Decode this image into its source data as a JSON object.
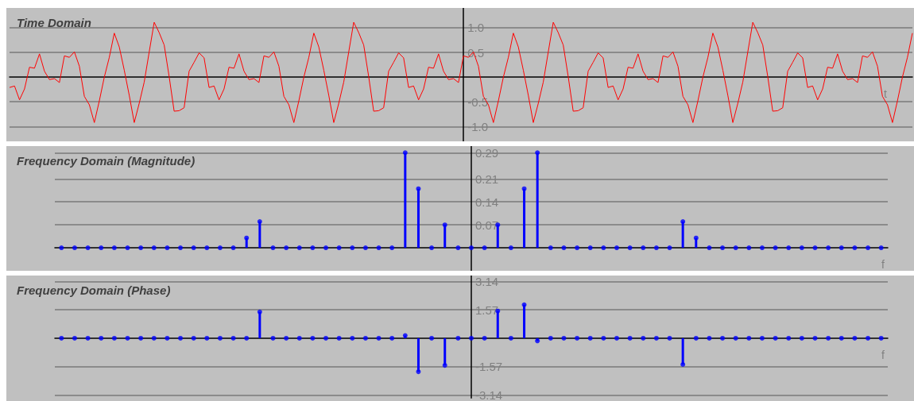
{
  "chart_data": [
    {
      "type": "line",
      "title": "Time Domain",
      "xlabel": "t",
      "color": "#ff0000",
      "marker": "none",
      "grid": "y",
      "tick_labels": "y",
      "ylim": [
        -1.3,
        1.4
      ],
      "yticks": [
        {
          "value": -1,
          "label": "-1.0"
        },
        {
          "value": -0.5,
          "label": "-0.5"
        },
        {
          "value": 0.5,
          "label": "0.5"
        },
        {
          "value": 1,
          "label": "1.0"
        }
      ],
      "categories": [
        null,
        null,
        null,
        null,
        null,
        null,
        null,
        null,
        null,
        null,
        null,
        null,
        null,
        null,
        null,
        null,
        null,
        null,
        null,
        null,
        null,
        null,
        null,
        null,
        null,
        null,
        null,
        null,
        null,
        null,
        null,
        null,
        null,
        null,
        null,
        null,
        null,
        null,
        null,
        null,
        null,
        null,
        null,
        null,
        null,
        null,
        null,
        null,
        null,
        null,
        null,
        null,
        null,
        null,
        null,
        null,
        null,
        null,
        null,
        null,
        null,
        null,
        null,
        null,
        null,
        null,
        null,
        null,
        null,
        null,
        null,
        null,
        null,
        null,
        null,
        null,
        null,
        null,
        null,
        null,
        null,
        null,
        null,
        null,
        null,
        null,
        null,
        null,
        null,
        null,
        null,
        null,
        null,
        null,
        null,
        null,
        null,
        null,
        null,
        null,
        null,
        null,
        null,
        null,
        null,
        null,
        null,
        null,
        null,
        null,
        null,
        null,
        null,
        null,
        null,
        null,
        null,
        null,
        null,
        null,
        null,
        null,
        null,
        null,
        null,
        null,
        null,
        null,
        null,
        null,
        null,
        null,
        null,
        null,
        null,
        null,
        null,
        null,
        null,
        null,
        null,
        null,
        null,
        null,
        null,
        null,
        null,
        null,
        null,
        null,
        null,
        null,
        null,
        null,
        null,
        null,
        null,
        null,
        null,
        null,
        null,
        null,
        null,
        null,
        null,
        null,
        null,
        null,
        null,
        null,
        null,
        null,
        null,
        null,
        null,
        null,
        null,
        null,
        null,
        null,
        null,
        null
      ],
      "values": [
        -0.21,
        -0.18,
        -0.46,
        -0.24,
        0.2,
        0.18,
        0.47,
        0.12,
        -0.05,
        -0.03,
        -0.11,
        0.43,
        0.4,
        0.51,
        0.22,
        -0.39,
        -0.56,
        -0.92,
        -0.48,
        0,
        0.4,
        0.89,
        0.61,
        0.14,
        -0.37,
        -0.92,
        -0.53,
        -0.1,
        0.51,
        1.11,
        0.9,
        0.65,
        0.01,
        -0.69,
        -0.68,
        -0.62,
        0.12,
        0.3,
        0.49,
        0.39,
        -0.21,
        -0.18,
        -0.46,
        -0.24,
        0.2,
        0.18,
        0.47,
        0.12,
        -0.05,
        -0.03,
        -0.11,
        0.43,
        0.4,
        0.51,
        0.22,
        -0.39,
        -0.56,
        -0.92,
        -0.48,
        0,
        0.4,
        0.89,
        0.61,
        0.14,
        -0.37,
        -0.92,
        -0.53,
        -0.1,
        0.51,
        1.11,
        0.9,
        0.65,
        0.01,
        -0.69,
        -0.68,
        -0.62,
        0.12,
        0.3,
        0.49,
        0.39,
        -0.21,
        -0.18,
        -0.46,
        -0.24,
        0.2,
        0.18,
        0.47,
        0.12,
        -0.05,
        -0.03,
        -0.11,
        0.43,
        0.4,
        0.51,
        0.22,
        -0.39,
        -0.56,
        -0.92,
        -0.48,
        0,
        0.4,
        0.89,
        0.61,
        0.14,
        -0.37,
        -0.92,
        -0.53,
        -0.1,
        0.51,
        1.11,
        0.9,
        0.65,
        0.01,
        -0.69,
        -0.68,
        -0.62,
        0.12,
        0.3,
        0.49,
        0.39,
        -0.21,
        -0.18,
        -0.46,
        -0.24,
        0.2,
        0.18,
        0.47,
        0.12,
        -0.05,
        -0.03,
        -0.11,
        0.43,
        0.4,
        0.51,
        0.22,
        -0.39,
        -0.56,
        -0.92,
        -0.48,
        0,
        0.4,
        0.89,
        0.61,
        0.14,
        -0.37,
        -0.92,
        -0.53,
        -0.1,
        0.51,
        1.11,
        0.9,
        0.65,
        0.01,
        -0.69,
        -0.68,
        -0.62,
        0.12,
        0.3,
        0.49,
        0.39,
        -0.21,
        -0.18,
        -0.46,
        -0.24,
        0.2,
        0.18,
        0.47,
        0.12,
        -0.05,
        -0.03,
        -0.11,
        0.43,
        0.4,
        0.51,
        0.22,
        -0.39,
        -0.56,
        -0.92,
        -0.48,
        0,
        0.4,
        0.89
      ]
    },
    {
      "type": "lollipop",
      "title": "Frequency Domain (Magnitude)",
      "xlabel": "f",
      "color": "#0000ff",
      "marker": "circle",
      "grid": "y",
      "tick_labels": "y",
      "ylim": [
        -0.07,
        0.31
      ],
      "yticks": [
        0.07,
        0.14,
        0.21,
        0.29
      ],
      "categories": [
        null,
        null,
        null,
        null,
        null,
        null,
        null,
        null,
        null,
        null,
        null,
        null,
        null,
        null,
        null,
        null,
        null,
        null,
        null,
        null,
        null,
        null,
        null,
        null,
        null,
        null,
        null,
        null,
        null,
        null,
        null,
        null,
        null,
        null,
        null,
        null,
        null,
        null,
        null,
        null,
        null,
        null,
        null,
        null,
        null,
        null,
        null,
        null,
        null,
        null,
        null,
        null,
        null,
        null,
        null,
        null,
        null,
        null,
        null,
        null,
        null,
        null,
        null
      ],
      "values": [
        0,
        0,
        0,
        0,
        0,
        0,
        0,
        0,
        0,
        0,
        0,
        0,
        0,
        0,
        0.03,
        0.08,
        0,
        0,
        0,
        0,
        0,
        0,
        0,
        0,
        0,
        0,
        0.29,
        0.18,
        0,
        0.07,
        0,
        0,
        0,
        0.07,
        0,
        0.18,
        0.29,
        0,
        0,
        0,
        0,
        0,
        0,
        0,
        0,
        0,
        0,
        0.08,
        0.03,
        0,
        0,
        0,
        0,
        0,
        0,
        0,
        0,
        0,
        0,
        0,
        0,
        0,
        0
      ]
    },
    {
      "type": "lollipop",
      "title": "Frequency Domain (Phase)",
      "xlabel": "f",
      "color": "#0000ff",
      "marker": "circle",
      "grid": "y",
      "tick_labels": "y",
      "ylim": [
        -3.3,
        3.45
      ],
      "yticks": [
        -3.14,
        -1.57,
        1.57,
        3.14
      ],
      "categories": [
        null,
        null,
        null,
        null,
        null,
        null,
        null,
        null,
        null,
        null,
        null,
        null,
        null,
        null,
        null,
        null,
        null,
        null,
        null,
        null,
        null,
        null,
        null,
        null,
        null,
        null,
        null,
        null,
        null,
        null,
        null,
        null,
        null,
        null,
        null,
        null,
        null,
        null,
        null,
        null,
        null,
        null,
        null,
        null,
        null,
        null,
        null,
        null,
        null,
        null,
        null,
        null,
        null,
        null,
        null,
        null,
        null,
        null,
        null,
        null,
        null,
        null,
        null
      ],
      "values": [
        0,
        0,
        0,
        0,
        0,
        0,
        0,
        0,
        0,
        0,
        0,
        0,
        0,
        0,
        0,
        1.45,
        0,
        0,
        0,
        0,
        0,
        0,
        0,
        0,
        0,
        0,
        0.15,
        -1.85,
        0,
        -1.5,
        0,
        0,
        0,
        1.5,
        0,
        1.85,
        -0.15,
        0,
        0,
        0,
        0,
        0,
        0,
        0,
        0,
        0,
        0,
        -1.45,
        0,
        0,
        0,
        0,
        0,
        0,
        0,
        0,
        0,
        0,
        0,
        0,
        0,
        0,
        0
      ]
    }
  ]
}
